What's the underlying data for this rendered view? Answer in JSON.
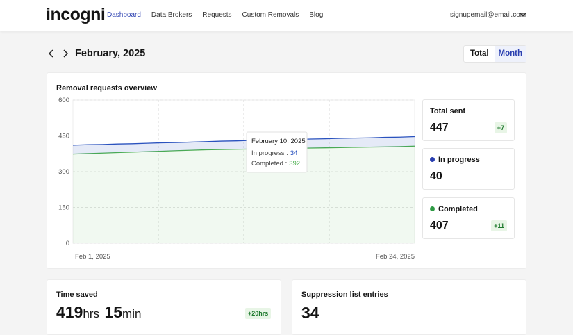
{
  "nav": {
    "logo": "incogni",
    "links": [
      "Dashboard",
      "Data Brokers",
      "Requests",
      "Custom Removals",
      "Blog"
    ],
    "account": "signupemail@email.com"
  },
  "period": {
    "label": "February, 2025",
    "toggle": [
      "Total",
      "Month"
    ]
  },
  "overview": {
    "title": "Removal requests overview",
    "chart_data": {
      "type": "area",
      "categories": [
        "Feb 1, 2025",
        null,
        null,
        null,
        null,
        null,
        null,
        null,
        null,
        null,
        null,
        null,
        null,
        null,
        null,
        null,
        null,
        null,
        null,
        null,
        null,
        null,
        null,
        "Feb 24, 2025"
      ],
      "series": [
        {
          "color": "#4caf50",
          "values": [
            374,
            376,
            378,
            380,
            382,
            384,
            386,
            388,
            390,
            392,
            393,
            394,
            395,
            396,
            397,
            398,
            399,
            400,
            401,
            402,
            403,
            404,
            405,
            407
          ]
        },
        {
          "color": "#2a52be",
          "values": [
            37,
            37,
            36,
            36,
            35,
            35,
            35,
            34,
            34,
            34,
            35,
            35,
            36,
            36,
            37,
            37,
            38,
            38,
            39,
            39,
            39,
            40,
            40,
            40
          ]
        }
      ],
      "stacked": true,
      "ylim": [
        0,
        600
      ],
      "yticks": [
        0,
        150,
        300,
        450,
        600
      ],
      "grid": true
    },
    "tooltip": {
      "date": "February 10, 2025",
      "rows": [
        {
          "label": "In progress :",
          "value": 34
        },
        {
          "label": "Completed :",
          "value": 392
        }
      ]
    }
  },
  "stats": [
    {
      "title": "Total sent",
      "value": 447,
      "delta": "+7"
    },
    {
      "title": "In progress",
      "value": 40,
      "color": "#2a3fb0"
    },
    {
      "title": "Completed",
      "value": 407,
      "color": "#2e9a44",
      "delta": "+11"
    }
  ],
  "time_saved": {
    "title": "Time saved",
    "hours": 419,
    "hours_unit": "hrs",
    "minutes": 15,
    "minutes_unit": "min",
    "delta": "+20hrs"
  },
  "suppression": {
    "title": "Suppression list entries",
    "value": 34
  }
}
